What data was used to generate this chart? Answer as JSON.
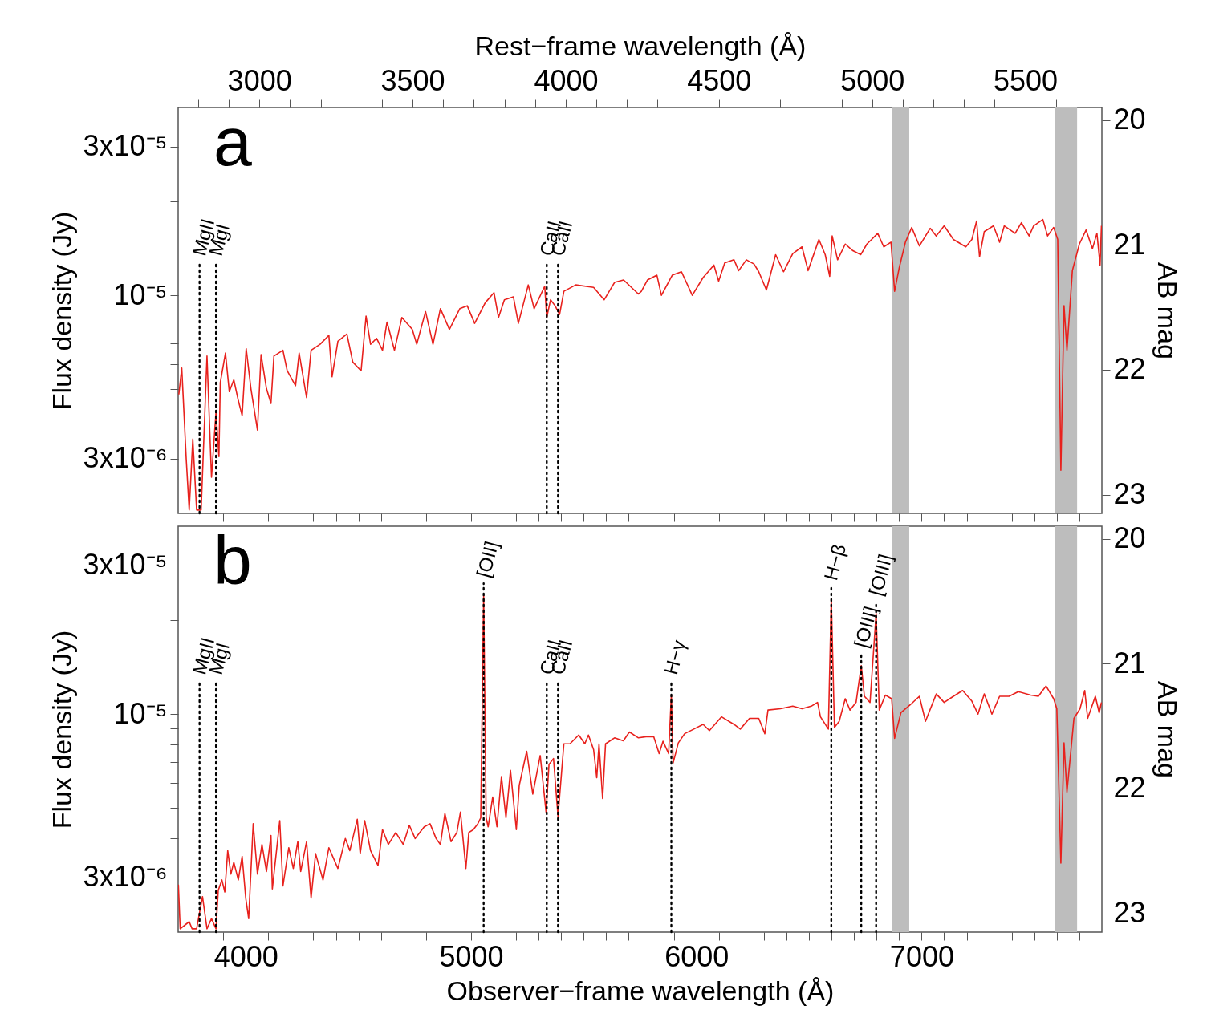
{
  "chart_data": [
    {
      "type": "line",
      "ylabel": "Flux density (Jy)",
      "y2label": "AB mag",
      "x2label": "Rest−frame wavelength (Å)",
      "annotations": [
        "a"
      ],
      "log": "y",
      "tick_labels": "y",
      "xlim": [
        3700,
        7800
      ],
      "xticks": [
        {
          "value": 3800,
          "label": null
        },
        {
          "value": 3900,
          "label": null
        },
        4000,
        {
          "value": 4100,
          "label": null
        },
        {
          "value": 4200,
          "label": null
        },
        {
          "value": 4300,
          "label": null
        },
        {
          "value": 4400,
          "label": null
        },
        {
          "value": 4500,
          "label": null
        },
        {
          "value": 4600,
          "label": null
        },
        {
          "value": 4700,
          "label": null
        },
        {
          "value": 4800,
          "label": null
        },
        {
          "value": 4900,
          "label": null
        },
        5000,
        {
          "value": 5100,
          "label": null
        },
        {
          "value": 5200,
          "label": null
        },
        {
          "value": 5300,
          "label": null
        },
        {
          "value": 5400,
          "label": null
        },
        {
          "value": 5500,
          "label": null
        },
        {
          "value": 5600,
          "label": null
        },
        {
          "value": 5700,
          "label": null
        },
        {
          "value": 5800,
          "label": null
        },
        {
          "value": 5900,
          "label": null
        },
        6000,
        {
          "value": 6100,
          "label": null
        },
        {
          "value": 6200,
          "label": null
        },
        {
          "value": 6300,
          "label": null
        },
        {
          "value": 6400,
          "label": null
        },
        {
          "value": 6500,
          "label": null
        },
        {
          "value": 6600,
          "label": null
        },
        {
          "value": 6700,
          "label": null
        },
        {
          "value": 6800,
          "label": null
        },
        {
          "value": 6900,
          "label": null
        },
        7000,
        {
          "value": 7100,
          "label": null
        },
        {
          "value": 7200,
          "label": null
        },
        {
          "value": 7300,
          "label": null
        },
        {
          "value": 7400,
          "label": null
        },
        {
          "value": 7500,
          "label": null
        },
        {
          "value": 7600,
          "label": null
        },
        {
          "value": 7700,
          "label": null
        }
      ],
      "x2lim": [
        2735,
        5750
      ],
      "x2ticks": [
        {
          "value": 2800,
          "label": null
        },
        {
          "value": 2900,
          "label": null
        },
        3000,
        {
          "value": 3100,
          "label": null
        },
        {
          "value": 3200,
          "label": null
        },
        {
          "value": 3300,
          "label": null
        },
        {
          "value": 3400,
          "label": null
        },
        3500,
        {
          "value": 3600,
          "label": null
        },
        {
          "value": 3700,
          "label": null
        },
        {
          "value": 3800,
          "label": null
        },
        {
          "value": 3900,
          "label": null
        },
        4000,
        {
          "value": 4100,
          "label": null
        },
        {
          "value": 4200,
          "label": null
        },
        {
          "value": 4300,
          "label": null
        },
        {
          "value": 4400,
          "label": null
        },
        4500,
        {
          "value": 4600,
          "label": null
        },
        {
          "value": 4700,
          "label": null
        },
        {
          "value": 4800,
          "label": null
        },
        {
          "value": 4900,
          "label": null
        },
        5000,
        {
          "value": 5100,
          "label": null
        },
        {
          "value": 5200,
          "label": null
        },
        {
          "value": 5300,
          "label": null
        },
        {
          "value": 5400,
          "label": null
        },
        5500,
        {
          "value": 5600,
          "label": null
        },
        {
          "value": 5700,
          "label": null
        }
      ],
      "ylim": [
        2e-06,
        4e-05
      ],
      "yticks": [
        {
          "value": 3e-06,
          "label": "3x10⁻⁶"
        },
        {
          "value": 4e-06,
          "label": null
        },
        {
          "value": 5e-06,
          "label": null
        },
        {
          "value": 6e-06,
          "label": null
        },
        {
          "value": 7e-06,
          "label": null
        },
        {
          "value": 8e-06,
          "label": null
        },
        {
          "value": 9e-06,
          "label": null
        },
        {
          "value": 1e-05,
          "label": "10⁻⁵"
        },
        {
          "value": 2e-05,
          "label": null
        },
        {
          "value": 3e-05,
          "label": "3x10⁻⁵"
        }
      ],
      "y2lim": [
        23.15,
        19.9
      ],
      "y2ticks": [
        20,
        21,
        22,
        23
      ],
      "bands": [
        {
          "axis": "x",
          "from": 6870,
          "to": 6945,
          "color": "#bdbdbd"
        },
        {
          "axis": "x",
          "from": 7590,
          "to": 7690,
          "color": "#bdbdbd"
        }
      ],
      "ref_lines": [
        {
          "axis": "x",
          "value": 3795,
          "label": "MgII",
          "line_style": "dotted",
          "color": "#000000"
        },
        {
          "axis": "x",
          "value": 3868,
          "label": "MgI",
          "line_style": "dotted",
          "color": "#000000"
        },
        {
          "axis": "x",
          "value": 5336,
          "label": "CaII",
          "line_style": "dotted",
          "color": "#000000"
        },
        {
          "axis": "x",
          "value": 5386,
          "label": "CaII",
          "line_style": "dotted",
          "color": "#000000"
        }
      ],
      "x": [
        3703,
        3716,
        3736,
        3749,
        3765,
        3782,
        3802,
        3828,
        3848,
        3868,
        3881,
        3887,
        3910,
        3927,
        3947,
        3967,
        3984,
        4002,
        4023,
        4052,
        4068,
        4092,
        4112,
        4125,
        4165,
        4184,
        4221,
        4237,
        4270,
        4290,
        4330,
        4369,
        4383,
        4409,
        4449,
        4475,
        4512,
        4534,
        4554,
        4581,
        4607,
        4627,
        4660,
        4693,
        4739,
        4759,
        4798,
        4831,
        4864,
        4904,
        4950,
        4983,
        5016,
        5063,
        5102,
        5122,
        5148,
        5188,
        5210,
        5254,
        5280,
        5327,
        5336,
        5353,
        5373,
        5393,
        5412,
        5465,
        5544,
        5591,
        5637,
        5677,
        5743,
        5756,
        5783,
        5825,
        5845,
        5893,
        5934,
        5982,
        6030,
        6078,
        6099,
        6126,
        6167,
        6188,
        6222,
        6256,
        6277,
        6311,
        6352,
        6387,
        6428,
        6469,
        6496,
        6544,
        6572,
        6592,
        6603,
        6627,
        6661,
        6695,
        6730,
        6757,
        6778,
        6805,
        6832,
        6864,
        6880,
        6901,
        6928,
        6956,
        6990,
        7038,
        7065,
        7100,
        7141,
        7196,
        7223,
        7244,
        7257,
        7278,
        7319,
        7346,
        7367,
        7415,
        7443,
        7477,
        7497,
        7538,
        7559,
        7586,
        7604,
        7618,
        7632,
        7645,
        7669,
        7700,
        7730,
        7758,
        7778,
        7792,
        7798
      ],
      "series": [
        {
          "color": "#e8211d",
          "values": [
            4.81e-06,
            5.85e-06,
            2.97e-06,
            2.05e-06,
            3.46e-06,
            2.05e-06,
            2.05e-06,
            6.39e-06,
            2.61e-06,
            4.22e-06,
            3.04e-06,
            5.25e-06,
            6.53e-06,
            4.91e-06,
            5.36e-06,
            4.6e-06,
            4.12e-06,
            6.75e-06,
            5.02e-06,
            3.7e-06,
            6.46e-06,
            5.02e-06,
            4.5e-06,
            6.39e-06,
            6.67e-06,
            5.73e-06,
            5.13e-06,
            6.53e-06,
            4.7e-06,
            6.67e-06,
            6.97e-06,
            7.44e-06,
            5.48e-06,
            7.13e-06,
            7.52e-06,
            6.11e-06,
            5.73e-06,
            8.58e-06,
            6.97e-06,
            7.28e-06,
            6.67e-06,
            8.21e-06,
            6.67e-06,
            8.49e-06,
            7.78e-06,
            6.97e-06,
            8.87e-06,
            6.97e-06,
            9.06e-06,
            7.78e-06,
            9.06e-06,
            9.26e-06,
            8.13e-06,
            9.47e-06,
            1.02e-05,
            8.49e-06,
            9.68e-06,
            9.89e-06,
            8.13e-06,
            1.08e-05,
            9.06e-06,
            1.07e-05,
            8.49e-06,
            9.68e-06,
            9.26e-06,
            8.68e-06,
            1.03e-05,
            1.08e-05,
            1.06e-05,
            9.68e-06,
            1.1e-05,
            1.12e-05,
            1.01e-05,
            1.03e-05,
            1.12e-05,
            1.16e-05,
            1e-05,
            1.16e-05,
            1.19e-05,
            1e-05,
            1.14e-05,
            1.25e-05,
            1.11e-05,
            1.27e-05,
            1.3e-05,
            1.2e-05,
            1.3e-05,
            1.26e-05,
            1.19e-05,
            1.04e-05,
            1.35e-05,
            1.19e-05,
            1.36e-05,
            1.43e-05,
            1.2e-05,
            1.51e-05,
            1.35e-05,
            1.15e-05,
            1.55e-05,
            1.3e-05,
            1.46e-05,
            1.39e-05,
            1.35e-05,
            1.46e-05,
            1.51e-05,
            1.58e-05,
            1.43e-05,
            1.48e-05,
            1.03e-05,
            1.23e-05,
            1.48e-05,
            1.65e-05,
            1.44e-05,
            1.64e-05,
            1.55e-05,
            1.67e-05,
            1.51e-05,
            1.43e-05,
            1.51e-05,
            1.73e-05,
            1.33e-05,
            1.6e-05,
            1.67e-05,
            1.48e-05,
            1.67e-05,
            1.58e-05,
            1.71e-05,
            1.55e-05,
            1.67e-05,
            1.75e-05,
            1.55e-05,
            1.65e-05,
            1.51e-05,
            2.75e-06,
            9.27e-06,
            6.67e-06,
            1.2e-05,
            1.46e-05,
            1.62e-05,
            1.41e-05,
            1.58e-05,
            1.25e-05,
            1.67e-05
          ]
        }
      ]
    },
    {
      "type": "line",
      "ylabel": "Flux density (Jy)",
      "y2label": "AB mag",
      "xlabel": "Observer−frame wavelength (Å)",
      "annotations": [
        "b"
      ],
      "log": "y",
      "xlim": [
        3700,
        7800
      ],
      "xticks": [
        {
          "value": 3800,
          "label": null
        },
        {
          "value": 3900,
          "label": null
        },
        4000,
        {
          "value": 4100,
          "label": null
        },
        {
          "value": 4200,
          "label": null
        },
        {
          "value": 4300,
          "label": null
        },
        {
          "value": 4400,
          "label": null
        },
        {
          "value": 4500,
          "label": null
        },
        {
          "value": 4600,
          "label": null
        },
        {
          "value": 4700,
          "label": null
        },
        {
          "value": 4800,
          "label": null
        },
        {
          "value": 4900,
          "label": null
        },
        5000,
        {
          "value": 5100,
          "label": null
        },
        {
          "value": 5200,
          "label": null
        },
        {
          "value": 5300,
          "label": null
        },
        {
          "value": 5400,
          "label": null
        },
        {
          "value": 5500,
          "label": null
        },
        {
          "value": 5600,
          "label": null
        },
        {
          "value": 5700,
          "label": null
        },
        {
          "value": 5800,
          "label": null
        },
        {
          "value": 5900,
          "label": null
        },
        6000,
        {
          "value": 6100,
          "label": null
        },
        {
          "value": 6200,
          "label": null
        },
        {
          "value": 6300,
          "label": null
        },
        {
          "value": 6400,
          "label": null
        },
        {
          "value": 6500,
          "label": null
        },
        {
          "value": 6600,
          "label": null
        },
        {
          "value": 6700,
          "label": null
        },
        {
          "value": 6800,
          "label": null
        },
        {
          "value": 6900,
          "label": null
        },
        7000,
        {
          "value": 7100,
          "label": null
        },
        {
          "value": 7200,
          "label": null
        },
        {
          "value": 7300,
          "label": null
        },
        {
          "value": 7400,
          "label": null
        },
        {
          "value": 7500,
          "label": null
        },
        {
          "value": 7600,
          "label": null
        },
        {
          "value": 7700,
          "label": null
        }
      ],
      "ylim": [
        2e-06,
        4e-05
      ],
      "yticks": [
        {
          "value": 3e-06,
          "label": "3x10⁻⁶"
        },
        {
          "value": 4e-06,
          "label": null
        },
        {
          "value": 5e-06,
          "label": null
        },
        {
          "value": 6e-06,
          "label": null
        },
        {
          "value": 7e-06,
          "label": null
        },
        {
          "value": 8e-06,
          "label": null
        },
        {
          "value": 9e-06,
          "label": null
        },
        {
          "value": 1e-05,
          "label": "10⁻⁵"
        },
        {
          "value": 2e-05,
          "label": null
        },
        {
          "value": 3e-05,
          "label": "3x10⁻⁵"
        }
      ],
      "y2lim": [
        23.15,
        19.9
      ],
      "y2ticks": [
        20,
        21,
        22,
        23
      ],
      "bands": [
        {
          "axis": "x",
          "from": 6870,
          "to": 6945,
          "color": "#bdbdbd"
        },
        {
          "axis": "x",
          "from": 7590,
          "to": 7690,
          "color": "#bdbdbd"
        }
      ],
      "ref_lines": [
        {
          "axis": "x",
          "value": 3795,
          "label": "MgII",
          "line_style": "dotted",
          "color": "#000000"
        },
        {
          "axis": "x",
          "value": 3868,
          "label": "MgI",
          "line_style": "dotted",
          "color": "#000000"
        },
        {
          "axis": "x",
          "value": 5056,
          "label": "[OII]",
          "line_style": "dotted",
          "color": "#000000"
        },
        {
          "axis": "x",
          "value": 5336,
          "label": "CaII",
          "line_style": "dotted",
          "color": "#000000"
        },
        {
          "axis": "x",
          "value": 5386,
          "label": "CaII",
          "line_style": "dotted",
          "color": "#000000"
        },
        {
          "axis": "x",
          "value": 5889,
          "label": "H−γ",
          "line_style": "dotted",
          "color": "#000000"
        },
        {
          "axis": "x",
          "value": 6599,
          "label": "H−β",
          "line_style": "dotted",
          "color": "#000000"
        },
        {
          "axis": "x",
          "value": 6732,
          "label": "[OIII]",
          "line_style": "dotted",
          "color": "#000000"
        },
        {
          "axis": "x",
          "value": 6798,
          "label": "[OIII]",
          "line_style": "dotted",
          "color": "#000000"
        }
      ],
      "x": [
        3701,
        3709,
        3749,
        3762,
        3782,
        3808,
        3828,
        3848,
        3868,
        3878,
        3894,
        3907,
        3920,
        3934,
        3947,
        3967,
        3984,
        4000,
        4013,
        4033,
        4052,
        4072,
        4092,
        4112,
        4118,
        4151,
        4165,
        4191,
        4211,
        4231,
        4244,
        4270,
        4290,
        4310,
        4343,
        4369,
        4409,
        4442,
        4462,
        4495,
        4508,
        4528,
        4554,
        4587,
        4607,
        4633,
        4666,
        4699,
        4726,
        4752,
        4792,
        4818,
        4845,
        4864,
        4884,
        4911,
        4937,
        4953,
        4977,
        4990,
        5010,
        5030,
        5043,
        5056,
        5067,
        5076,
        5096,
        5115,
        5135,
        5155,
        5175,
        5201,
        5214,
        5247,
        5274,
        5307,
        5333,
        5346,
        5366,
        5386,
        5412,
        5439,
        5478,
        5505,
        5521,
        5544,
        5558,
        5568,
        5584,
        5597,
        5637,
        5676,
        5703,
        5743,
        5777,
        5811,
        5835,
        5852,
        5877,
        5889,
        5897,
        5920,
        5948,
        5989,
        6030,
        6058,
        6112,
        6167,
        6195,
        6236,
        6277,
        6304,
        6318,
        6373,
        6428,
        6469,
        6510,
        6538,
        6551,
        6586,
        6599,
        6613,
        6634,
        6661,
        6682,
        6709,
        6732,
        6746,
        6771,
        6798,
        6812,
        6839,
        6867,
        6880,
        6908,
        6949,
        6990,
        7017,
        7065,
        7100,
        7141,
        7182,
        7223,
        7250,
        7278,
        7312,
        7346,
        7388,
        7429,
        7484,
        7518,
        7552,
        7586,
        7600,
        7618,
        7632,
        7645,
        7676,
        7703,
        7724,
        7737,
        7771,
        7788,
        7798
      ],
      "series": [
        {
          "color": "#e8211d",
          "values": [
            2.84e-06,
            2.05e-06,
            2.16e-06,
            2.05e-06,
            2.05e-06,
            2.6e-06,
            2.05e-06,
            2.21e-06,
            2.05e-06,
            2.72e-06,
            2.94e-06,
            2.69e-06,
            3.65e-06,
            3.07e-06,
            3.35e-06,
            2.94e-06,
            3.5e-06,
            2.57e-06,
            2.21e-06,
            4.45e-06,
            3.07e-06,
            3.82e-06,
            3.13e-06,
            4.08e-06,
            2.75e-06,
            4.55e-06,
            2.81e-06,
            3.73e-06,
            3.2e-06,
            3.9e-06,
            3.13e-06,
            3.9e-06,
            2.57e-06,
            3.57e-06,
            2.94e-06,
            3.73e-06,
            3.2e-06,
            3.99e-06,
            3.65e-06,
            4.6e-06,
            3.57e-06,
            4.55e-06,
            3.65e-06,
            3.27e-06,
            4.26e-06,
            3.82e-06,
            4.17e-06,
            3.82e-06,
            4.4e-06,
            3.99e-06,
            4.35e-06,
            4.45e-06,
            3.99e-06,
            3.82e-06,
            4.8e-06,
            3.9e-06,
            4.17e-06,
            4.85e-06,
            3.2e-06,
            4.17e-06,
            4.26e-06,
            4.45e-06,
            4.65e-06,
            2.4e-05,
            4.65e-06,
            4.35e-06,
            5.42e-06,
            4.35e-06,
            6.31e-06,
            4.65e-06,
            6.6e-06,
            4.26e-06,
            5.91e-06,
            7.6e-06,
            5.54e-06,
            7.36e-06,
            4.85e-06,
            6.89e-06,
            7.2e-06,
            4.7e-06,
            8.03e-06,
            8.03e-06,
            8.57e-06,
            8.03e-06,
            8.57e-06,
            7.69e-06,
            6.25e-06,
            8.03e-06,
            5.36e-06,
            8.03e-06,
            8.39e-06,
            8.21e-06,
            8.76e-06,
            8.39e-06,
            8.46e-06,
            8.46e-06,
            7.47e-06,
            8.18e-06,
            7.47e-06,
            1.15e-05,
            6.97e-06,
            8.08e-06,
            8.65e-06,
            8.95e-06,
            9.27e-06,
            8.85e-06,
            9.8e-06,
            9.27e-06,
            8.95e-06,
            9.69e-06,
            9.69e-06,
            8.65e-06,
            1.03e-05,
            1.04e-05,
            1.06e-05,
            1.04e-05,
            1.06e-05,
            1.09e-05,
            9.8e-06,
            8.95e-06,
            2.35e-05,
            9.06e-06,
            9.48e-06,
            1.12e-05,
            1.03e-05,
            1.09e-05,
            1.43e-05,
            1.14e-05,
            1.09e-05,
            2.1e-05,
            1.03e-05,
            1.15e-05,
            1.12e-05,
            8.36e-06,
            1.01e-05,
            1.07e-05,
            1.14e-05,
            9.48e-06,
            1.16e-05,
            1.09e-05,
            1.14e-05,
            1.19e-05,
            1.1e-05,
            1e-05,
            1.16e-05,
            1e-05,
            1.14e-05,
            1.14e-05,
            1.18e-05,
            1.15e-05,
            1.14e-05,
            1.23e-05,
            1.12e-05,
            1.04e-05,
            3.33e-06,
            8.08e-06,
            5.62e-06,
            9.69e-06,
            1.04e-05,
            1.19e-05,
            9.69e-06,
            1.14e-05,
            1.01e-05,
            1.09e-05
          ]
        }
      ]
    }
  ]
}
